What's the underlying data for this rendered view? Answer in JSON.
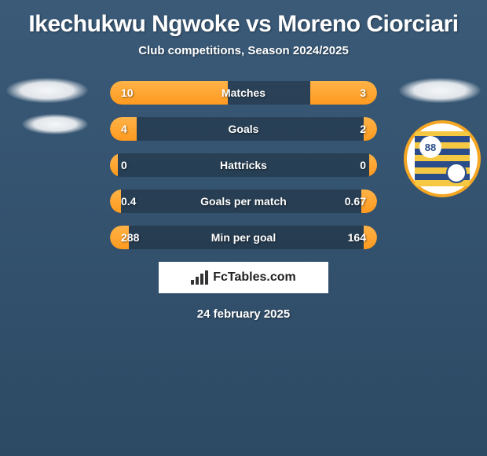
{
  "title": "Ikechukwu Ngwoke vs Moreno Ciorciari",
  "subtitle": "Club competitions, Season 2024/2025",
  "date": "24 february 2025",
  "footer_brand": "FcTables.com",
  "club_badge_right": {
    "number": "88"
  },
  "colors": {
    "bar_fill": "#ff9a1f",
    "bar_bg": "rgba(0,0,0,0.25)",
    "page_bg_top": "#3a5a78",
    "page_bg_bottom": "#2d4a64"
  },
  "rows": [
    {
      "label": "Matches",
      "left": "10",
      "right": "3",
      "left_pct": 44,
      "right_pct": 25
    },
    {
      "label": "Goals",
      "left": "4",
      "right": "2",
      "left_pct": 10,
      "right_pct": 5
    },
    {
      "label": "Hattricks",
      "left": "0",
      "right": "0",
      "left_pct": 3,
      "right_pct": 3
    },
    {
      "label": "Goals per match",
      "left": "0.4",
      "right": "0.67",
      "left_pct": 4,
      "right_pct": 6
    },
    {
      "label": "Min per goal",
      "left": "288",
      "right": "164",
      "left_pct": 7,
      "right_pct": 5
    }
  ]
}
